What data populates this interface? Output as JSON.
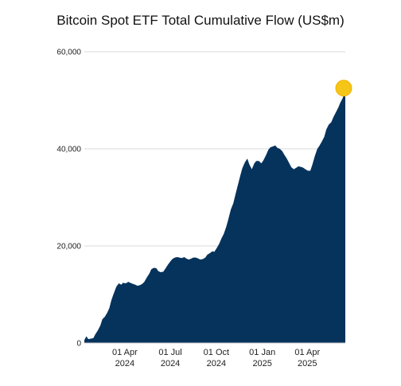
{
  "chart_data": {
    "type": "area",
    "title": "Bitcoin Spot ETF Total Cumulative Flow (US$m)",
    "xlabel": "",
    "ylabel": "",
    "ylim": [
      0,
      60000
    ],
    "yticks": [
      {
        "value": 0,
        "label": "0"
      },
      {
        "value": 20000,
        "label": "20,000"
      },
      {
        "value": 40000,
        "label": "40,000"
      },
      {
        "value": 60000,
        "label": "60,000"
      }
    ],
    "xlim": [
      "2024-01-11",
      "2025-06-16"
    ],
    "xticks": [
      {
        "date": "2024-04-01",
        "line1": "01 Apr",
        "line2": "2024"
      },
      {
        "date": "2024-07-01",
        "line1": "01 Jul",
        "line2": "2024"
      },
      {
        "date": "2024-10-01",
        "line1": "01 Oct",
        "line2": "2024"
      },
      {
        "date": "2025-01-01",
        "line1": "01 Jan",
        "line2": "2025"
      },
      {
        "date": "2025-04-01",
        "line1": "01 Apr",
        "line2": "2025"
      }
    ],
    "grid": true,
    "colors": {
      "area": "#06335c",
      "highlight": "#f5c518",
      "grid": "#d9d9d9"
    },
    "series": [
      {
        "x": [
          "2024-01-11",
          "2024-01-15",
          "2024-01-19",
          "2024-01-24",
          "2024-01-29",
          "2024-02-02",
          "2024-02-07",
          "2024-02-12",
          "2024-02-16",
          "2024-02-21",
          "2024-02-26",
          "2024-03-01",
          "2024-03-05",
          "2024-03-08",
          "2024-03-12",
          "2024-03-15",
          "2024-03-20",
          "2024-03-25",
          "2024-03-28",
          "2024-04-03",
          "2024-04-08",
          "2024-04-12",
          "2024-04-17",
          "2024-04-22",
          "2024-04-26",
          "2024-05-01",
          "2024-05-06",
          "2024-05-10",
          "2024-05-15",
          "2024-05-20",
          "2024-05-24",
          "2024-05-29",
          "2024-06-03",
          "2024-06-07",
          "2024-06-12",
          "2024-06-17",
          "2024-06-21",
          "2024-06-26",
          "2024-07-01",
          "2024-07-05",
          "2024-07-10",
          "2024-07-15",
          "2024-07-19",
          "2024-07-24",
          "2024-07-29",
          "2024-08-02",
          "2024-08-07",
          "2024-08-12",
          "2024-08-16",
          "2024-08-21",
          "2024-08-26",
          "2024-08-30",
          "2024-09-04",
          "2024-09-09",
          "2024-09-13",
          "2024-09-18",
          "2024-09-23",
          "2024-09-27",
          "2024-10-02",
          "2024-10-07",
          "2024-10-11",
          "2024-10-16",
          "2024-10-21",
          "2024-10-25",
          "2024-10-30",
          "2024-11-04",
          "2024-11-08",
          "2024-11-13",
          "2024-11-18",
          "2024-11-22",
          "2024-11-27",
          "2024-12-02",
          "2024-12-06",
          "2024-12-11",
          "2024-12-16",
          "2024-12-20",
          "2024-12-25",
          "2024-12-30",
          "2025-01-03",
          "2025-01-08",
          "2025-01-13",
          "2025-01-17",
          "2025-01-22",
          "2025-01-27",
          "2025-01-31",
          "2025-02-05",
          "2025-02-10",
          "2025-02-14",
          "2025-02-19",
          "2025-02-24",
          "2025-02-28",
          "2025-03-05",
          "2025-03-10",
          "2025-03-14",
          "2025-03-19",
          "2025-03-24",
          "2025-03-28",
          "2025-04-02",
          "2025-04-07",
          "2025-04-11",
          "2025-04-16",
          "2025-04-21",
          "2025-04-25",
          "2025-04-30",
          "2025-05-05",
          "2025-05-09",
          "2025-05-14",
          "2025-05-19",
          "2025-05-23",
          "2025-05-28",
          "2025-06-02",
          "2025-06-06",
          "2025-06-11",
          "2025-06-16"
        ],
        "values": [
          600,
          1400,
          800,
          900,
          1000,
          1800,
          2600,
          3600,
          4900,
          5400,
          6300,
          7200,
          8800,
          9700,
          10800,
          11600,
          12300,
          12000,
          12400,
          12300,
          12600,
          12400,
          12200,
          12000,
          11800,
          11900,
          12200,
          12600,
          13500,
          14300,
          15200,
          15500,
          15400,
          14800,
          14600,
          14700,
          15300,
          16100,
          16800,
          17300,
          17600,
          17700,
          17600,
          17500,
          17700,
          17400,
          17200,
          17400,
          17600,
          17600,
          17400,
          17200,
          17300,
          17600,
          18200,
          18500,
          18900,
          18800,
          19600,
          20500,
          21500,
          22500,
          24000,
          25500,
          27500,
          28800,
          30500,
          32500,
          34500,
          36000,
          37200,
          38000,
          36800,
          35800,
          37000,
          37500,
          37500,
          37000,
          37600,
          38600,
          39800,
          40300,
          40500,
          40700,
          40200,
          40000,
          39500,
          38800,
          38000,
          37000,
          36200,
          35800,
          36100,
          36400,
          36300,
          36100,
          35800,
          35500,
          35500,
          36700,
          38500,
          40000,
          40600,
          41500,
          42500,
          44000,
          45000,
          45500,
          46500,
          47500,
          48500,
          49500,
          50500,
          52500
        ]
      }
    ],
    "highlight_point": {
      "x": "2025-06-16",
      "value": 52500
    }
  }
}
